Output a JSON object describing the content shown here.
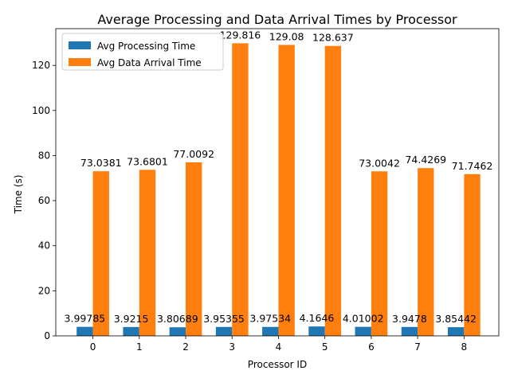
{
  "chart_data": {
    "type": "bar",
    "title": "Average Processing and Data Arrival Times by Processor",
    "xlabel": "Processor ID",
    "ylabel": "Time (s)",
    "categories": [
      "0",
      "1",
      "2",
      "3",
      "4",
      "5",
      "6",
      "7",
      "8"
    ],
    "ylim": [
      0,
      136.3
    ],
    "yticks": [
      "0",
      "20",
      "40",
      "60",
      "80",
      "100",
      "120"
    ],
    "legend_position": "top-left",
    "grid": false,
    "series": [
      {
        "name": "Avg Processing Time",
        "color": "#1f77b4",
        "values": [
          3.99785,
          3.9215,
          3.80689,
          3.95355,
          3.97534,
          4.1646,
          4.01002,
          3.9478,
          3.85442
        ],
        "labels": [
          "3.99785",
          "3.9215",
          "3.80689",
          "3.95355",
          "3.97534",
          "4.1646",
          "4.01002",
          "3.9478",
          "3.85442"
        ]
      },
      {
        "name": "Avg Data Arrival Time",
        "color": "#ff7f0e",
        "values": [
          73.0381,
          73.6801,
          77.0092,
          129.816,
          129.08,
          128.637,
          73.0042,
          74.4269,
          71.7462
        ],
        "labels": [
          "73.0381",
          "73.6801",
          "77.0092",
          "129.816",
          "129.08",
          "128.637",
          "73.0042",
          "74.4269",
          "71.7462"
        ]
      }
    ]
  }
}
